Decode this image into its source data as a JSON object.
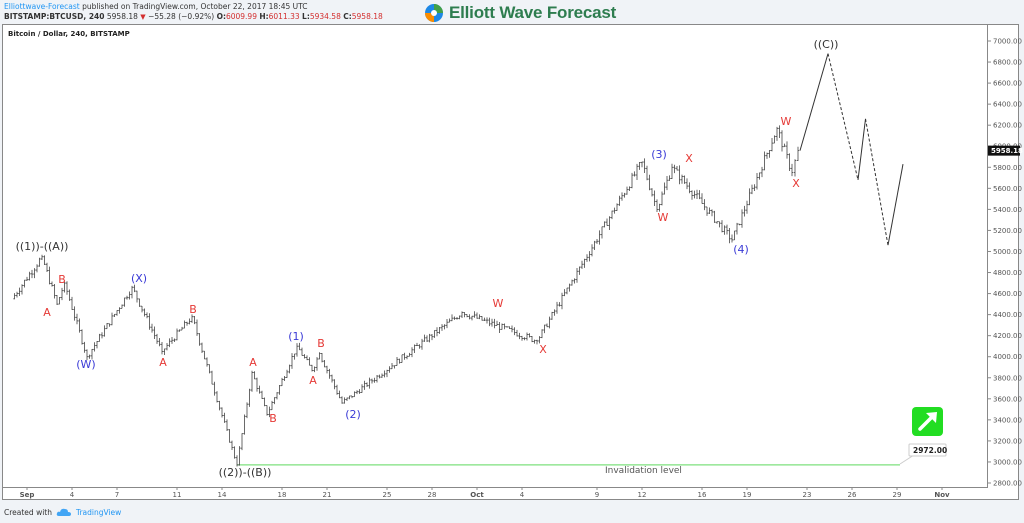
{
  "header": {
    "publisher": "Elliottwave-Forecast",
    "published_text": " published on TradingView.com, October 22, 2017 18:45 UTC",
    "symbol": "BITSTAMP:BTCUSD, 240",
    "last": "5958.18",
    "change": "−55.28 (−0.92%)",
    "open_label": "O:",
    "open": "6009.99",
    "high_label": "H:",
    "high": "6011.33",
    "low_label": "L:",
    "low": "5934.58",
    "close_label": "C:",
    "close": "5958.18"
  },
  "brand": {
    "name": "Elliott Wave Forecast"
  },
  "chart": {
    "title": "Bitcoin / Dollar, 240, BITSTAMP",
    "last_price_badge": "5958.18",
    "invalidation_label": "Invalidation level",
    "invalidation_value": "2972.00",
    "colors": {
      "bars": "#444444",
      "wave_red": "#e53935",
      "wave_blue": "#3a3ad6",
      "wave_dark": "#333333",
      "invalidation": "#7ee07e",
      "arrow_box": "#22dd22"
    }
  },
  "footer": {
    "created_with": "Created with",
    "tradingview": "TradingView"
  },
  "chart_data": {
    "type": "ohlc-bar",
    "title": "Bitcoin / Dollar, 240, BITSTAMP",
    "xlabel": "",
    "ylabel": "",
    "ylim": [
      2700,
      7100
    ],
    "y_ticks": [
      "7000.00",
      "6800.00",
      "6600.00",
      "6400.00",
      "6200.00",
      "6000.00",
      "5800.00",
      "5600.00",
      "5400.00",
      "5200.00",
      "5000.00",
      "4800.00",
      "4600.00",
      "4400.00",
      "4200.00",
      "4000.00",
      "3800.00",
      "3600.00",
      "3400.00",
      "3200.00",
      "3000.00",
      "2800.00"
    ],
    "x_ticks": [
      "Sep",
      "4",
      "7",
      "11",
      "14",
      "18",
      "21",
      "25",
      "28",
      "Oct",
      "4",
      "9",
      "12",
      "16",
      "19",
      "23",
      "26",
      "29",
      "Nov"
    ],
    "price_path": [
      {
        "date": "Aug 31",
        "price": 4550
      },
      {
        "date": "Sep 2",
        "price": 4950
      },
      {
        "date": "Sep 3",
        "price": 4500
      },
      {
        "date": "Sep 3.5",
        "price": 4700
      },
      {
        "date": "Sep 5",
        "price": 4000
      },
      {
        "date": "Sep 8",
        "price": 4660
      },
      {
        "date": "Sep 10",
        "price": 4050
      },
      {
        "date": "Sep 12",
        "price": 4380
      },
      {
        "date": "Sep 15",
        "price": 2972
      },
      {
        "date": "Sep 16",
        "price": 3850
      },
      {
        "date": "Sep 17",
        "price": 3450
      },
      {
        "date": "Sep 19",
        "price": 4100
      },
      {
        "date": "Sep 20",
        "price": 3870
      },
      {
        "date": "Sep 20.5",
        "price": 4030
      },
      {
        "date": "Sep 22",
        "price": 3560
      },
      {
        "date": "Sep 30",
        "price": 4420
      },
      {
        "date": "Oct 5",
        "price": 4150
      },
      {
        "date": "Oct 12",
        "price": 5850
      },
      {
        "date": "Oct 13",
        "price": 5400
      },
      {
        "date": "Oct 14",
        "price": 5800
      },
      {
        "date": "Oct 18",
        "price": 5110
      },
      {
        "date": "Oct 21",
        "price": 6170
      },
      {
        "date": "Oct 22",
        "price": 5750
      },
      {
        "date": "Oct 22 (last)",
        "price": 5958.18
      }
    ],
    "projection": [
      {
        "date": "Oct 22",
        "price": 5958
      },
      {
        "date": "Oct 24",
        "price": 6880,
        "style": "solid"
      },
      {
        "date": "Oct 26",
        "price": 5680,
        "style": "dashed"
      },
      {
        "date": "Oct 26.5",
        "price": 6260,
        "style": "solid"
      },
      {
        "date": "Oct 28",
        "price": 5060,
        "style": "dashed"
      },
      {
        "date": "Oct 29",
        "price": 5830,
        "style": "solid"
      }
    ],
    "wave_labels": [
      {
        "text": "((1))-((A))",
        "price": 4950,
        "color": "dark"
      },
      {
        "text": "A",
        "price": 4500,
        "color": "red"
      },
      {
        "text": "B",
        "price": 4700,
        "color": "red"
      },
      {
        "text": "(W)",
        "price": 4000,
        "color": "blue"
      },
      {
        "text": "(X)",
        "price": 4660,
        "color": "blue"
      },
      {
        "text": "A",
        "price": 4050,
        "color": "red"
      },
      {
        "text": "B",
        "price": 4380,
        "color": "red"
      },
      {
        "text": "((2))-((B))",
        "price": 2972,
        "color": "dark"
      },
      {
        "text": "A",
        "price": 3850,
        "color": "red"
      },
      {
        "text": "B",
        "price": 3450,
        "color": "red"
      },
      {
        "text": "(1)",
        "price": 4100,
        "color": "blue"
      },
      {
        "text": "A",
        "price": 3870,
        "color": "red"
      },
      {
        "text": "B",
        "price": 4030,
        "color": "red"
      },
      {
        "text": "(2)",
        "price": 3560,
        "color": "blue"
      },
      {
        "text": "W",
        "price": 4420,
        "color": "red"
      },
      {
        "text": "X",
        "price": 4150,
        "color": "red"
      },
      {
        "text": "(3)",
        "price": 5850,
        "color": "blue"
      },
      {
        "text": "W",
        "price": 5400,
        "color": "red"
      },
      {
        "text": "X",
        "price": 5800,
        "color": "red"
      },
      {
        "text": "(4)",
        "price": 5110,
        "color": "blue"
      },
      {
        "text": "W",
        "price": 6170,
        "color": "red"
      },
      {
        "text": "X",
        "price": 5750,
        "color": "red"
      },
      {
        "text": "((C))",
        "price": 6880,
        "color": "dark"
      }
    ],
    "annotations": [
      {
        "text": "Invalidation level",
        "price": 2972
      },
      {
        "text": "2972.00",
        "type": "price-callout"
      },
      {
        "text": "5958.18",
        "type": "last-price-badge"
      }
    ],
    "grid": false,
    "legend": "none"
  }
}
